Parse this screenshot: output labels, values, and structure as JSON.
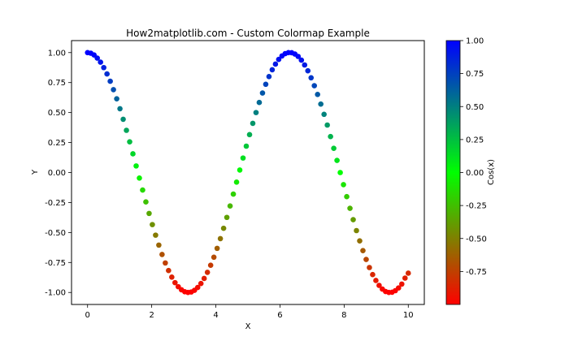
{
  "chart_data": {
    "type": "scatter",
    "title": "How2matplotlib.com - Custom Colormap Example",
    "xlabel": "X",
    "ylabel": "Y",
    "xlim": [
      -0.5,
      10.5
    ],
    "ylim": [
      -1.1,
      1.1
    ],
    "xticks": [
      0,
      2,
      4,
      6,
      8,
      10
    ],
    "xtick_labels": [
      "0",
      "2",
      "4",
      "6",
      "8",
      "10"
    ],
    "yticks": [
      -1.0,
      -0.75,
      -0.5,
      -0.25,
      0.0,
      0.25,
      0.5,
      0.75,
      1.0
    ],
    "ytick_labels": [
      "-1.00",
      "-0.75",
      "-0.50",
      "-0.25",
      "0.00",
      "0.25",
      "0.50",
      "0.75",
      "1.00"
    ],
    "grid": false,
    "series": [
      {
        "x": [
          0.0,
          0.101,
          0.202,
          0.303,
          0.404,
          0.505,
          0.606,
          0.707,
          0.808,
          0.909,
          1.01,
          1.111,
          1.212,
          1.313,
          1.414,
          1.515,
          1.616,
          1.717,
          1.818,
          1.919,
          2.02,
          2.121,
          2.222,
          2.323,
          2.424,
          2.525,
          2.626,
          2.727,
          2.828,
          2.929,
          3.03,
          3.131,
          3.232,
          3.333,
          3.434,
          3.535,
          3.636,
          3.737,
          3.838,
          3.939,
          4.04,
          4.141,
          4.242,
          4.343,
          4.444,
          4.545,
          4.646,
          4.747,
          4.848,
          4.949,
          5.051,
          5.152,
          5.253,
          5.354,
          5.455,
          5.556,
          5.657,
          5.758,
          5.859,
          5.96,
          6.061,
          6.162,
          6.263,
          6.364,
          6.465,
          6.566,
          6.667,
          6.768,
          6.869,
          6.97,
          7.071,
          7.172,
          7.273,
          7.374,
          7.475,
          7.576,
          7.677,
          7.778,
          7.879,
          7.98,
          8.081,
          8.182,
          8.283,
          8.384,
          8.485,
          8.586,
          8.687,
          8.788,
          8.889,
          8.99,
          9.091,
          9.192,
          9.293,
          9.394,
          9.495,
          9.596,
          9.697,
          9.798,
          9.899,
          10.0
        ],
        "y": [
          1.0,
          0.995,
          0.98,
          0.954,
          0.92,
          0.875,
          0.822,
          0.761,
          0.691,
          0.615,
          0.532,
          0.444,
          0.352,
          0.256,
          0.156,
          0.055,
          -0.046,
          -0.146,
          -0.245,
          -0.341,
          -0.434,
          -0.522,
          -0.605,
          -0.683,
          -0.754,
          -0.817,
          -0.872,
          -0.918,
          -0.952,
          -0.978,
          -0.994,
          -1.0,
          -0.996,
          -0.982,
          -0.958,
          -0.925,
          -0.883,
          -0.832,
          -0.773,
          -0.706,
          -0.632,
          -0.551,
          -0.465,
          -0.374,
          -0.279,
          -0.18,
          -0.08,
          0.021,
          0.121,
          0.22,
          0.316,
          0.41,
          0.5,
          0.584,
          0.663,
          0.736,
          0.8,
          0.857,
          0.904,
          0.943,
          0.972,
          0.991,
          1.0,
          0.999,
          0.988,
          0.968,
          0.937,
          0.897,
          0.848,
          0.79,
          0.724,
          0.651,
          0.571,
          0.485,
          0.396,
          0.3,
          0.202,
          0.101,
          0.0,
          -0.101,
          -0.201,
          -0.298,
          -0.393,
          -0.484,
          -0.57,
          -0.651,
          -0.725,
          -0.792,
          -0.851,
          -0.9,
          -0.941,
          -0.972,
          -0.992,
          -1.0,
          -0.998,
          -0.985,
          -0.962,
          -0.93,
          -0.88,
          -0.839
        ]
      }
    ],
    "colorbar": {
      "label": "Cos(x)",
      "range": [
        -1.0,
        1.0
      ],
      "ticks": [
        1.0,
        0.75,
        0.5,
        0.25,
        0.0,
        -0.25,
        -0.5,
        -0.75
      ],
      "tick_labels": [
        "1.00",
        "0.75",
        "0.50",
        "0.25",
        "0.00",
        "-0.25",
        "-0.50",
        "-0.75"
      ],
      "colors": [
        "#ff0000",
        "#00ff00",
        "#0000ff"
      ]
    }
  }
}
